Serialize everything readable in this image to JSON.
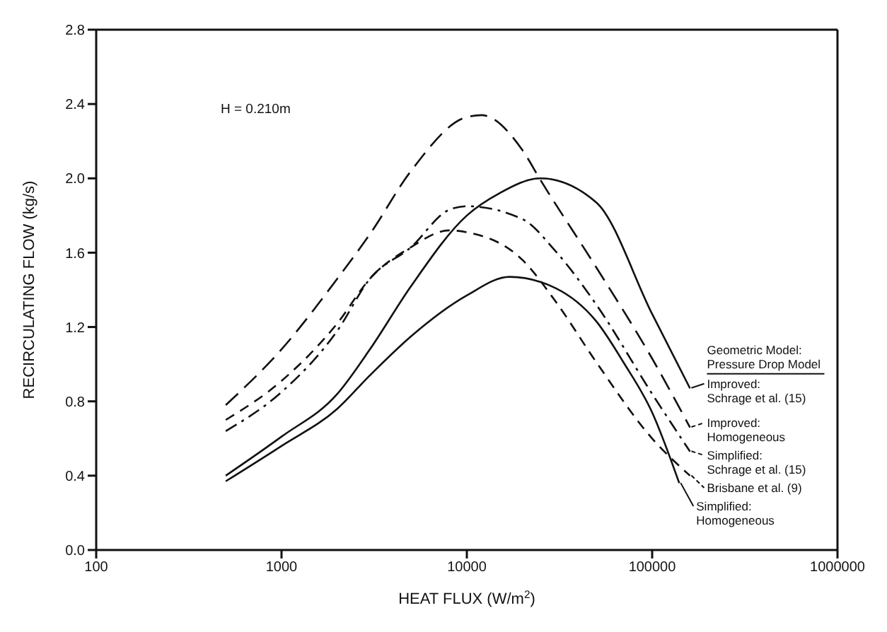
{
  "chart_data": {
    "type": "line",
    "xlabel": "HEAT FLUX (W/m$^{2}$)",
    "ylabel": "RECIRCULATING FLOW (kg/s)",
    "log": "x",
    "xlim": [
      100,
      1000000
    ],
    "xticks": [
      100,
      1000,
      10000,
      100000,
      1000000
    ],
    "ylim": [
      0,
      2.8
    ],
    "yticks": [
      {
        "value": 0,
        "label": "0.0"
      },
      {
        "value": 0.4,
        "label": "0.4"
      },
      {
        "value": 0.8,
        "label": "0.8"
      },
      {
        "value": 1.2,
        "label": "1.2"
      },
      {
        "value": 1.6,
        "label": "1.6"
      },
      {
        "value": 2,
        "label": "2.0"
      },
      {
        "value": 2.4,
        "label": "2.4"
      },
      {
        "value": 2.8,
        "label": "2.8"
      }
    ],
    "marker": "none",
    "legend": "right",
    "legend_title": "Geometric Model: Pressure Drop Model",
    "annotations": [
      "H = 0.210m"
    ],
    "series": [
      {
        "name": "Improved: Schrage et al. (15)",
        "color": "#111111",
        "line_style": "solid",
        "x": [
          500,
          1000,
          2000,
          3000,
          5000,
          10000,
          15000,
          25000,
          50000,
          100000,
          160000
        ],
        "values": [
          0.4,
          0.61,
          0.84,
          1.08,
          1.42,
          1.8,
          1.92,
          2.0,
          1.87,
          1.27,
          0.87
        ]
      },
      {
        "name": "Improved: Homogeneous",
        "color": "#111111",
        "line_style": "dashed",
        "x": [
          500,
          1000,
          2000,
          3000,
          5000,
          10000,
          12000,
          20000,
          25000,
          50000,
          100000,
          160000
        ],
        "values": [
          0.78,
          1.08,
          1.46,
          1.7,
          2.04,
          2.33,
          2.34,
          2.15,
          1.99,
          1.52,
          1.03,
          0.66
        ]
      },
      {
        "name": "Simplified: Schrage et al. (15)",
        "color": "#111111",
        "line_style": "dashdot",
        "x": [
          500,
          1000,
          2000,
          3000,
          5000,
          8000,
          10000,
          20000,
          30000,
          50000,
          100000,
          160000
        ],
        "values": [
          0.64,
          0.85,
          1.18,
          1.46,
          1.63,
          1.83,
          1.85,
          1.78,
          1.61,
          1.32,
          0.84,
          0.53
        ]
      },
      {
        "name": "Brisbane et al. (9)",
        "color": "#111111",
        "line_style": "dotted",
        "x": [
          500,
          1000,
          2000,
          3000,
          5000,
          8000,
          10000,
          20000,
          30000,
          50000,
          100000,
          160000
        ],
        "values": [
          0.7,
          0.91,
          1.22,
          1.46,
          1.63,
          1.72,
          1.71,
          1.56,
          1.34,
          1.01,
          0.6,
          0.4
        ]
      },
      {
        "name": "Simplified: Homogeneous",
        "color": "#111111",
        "line_style": "solid",
        "x": [
          500,
          1000,
          2000,
          3000,
          5000,
          10000,
          17000,
          30000,
          50000,
          70000,
          100000,
          140000
        ],
        "values": [
          0.37,
          0.56,
          0.76,
          0.94,
          1.15,
          1.37,
          1.47,
          1.41,
          1.23,
          1.01,
          0.74,
          0.36
        ]
      }
    ]
  }
}
